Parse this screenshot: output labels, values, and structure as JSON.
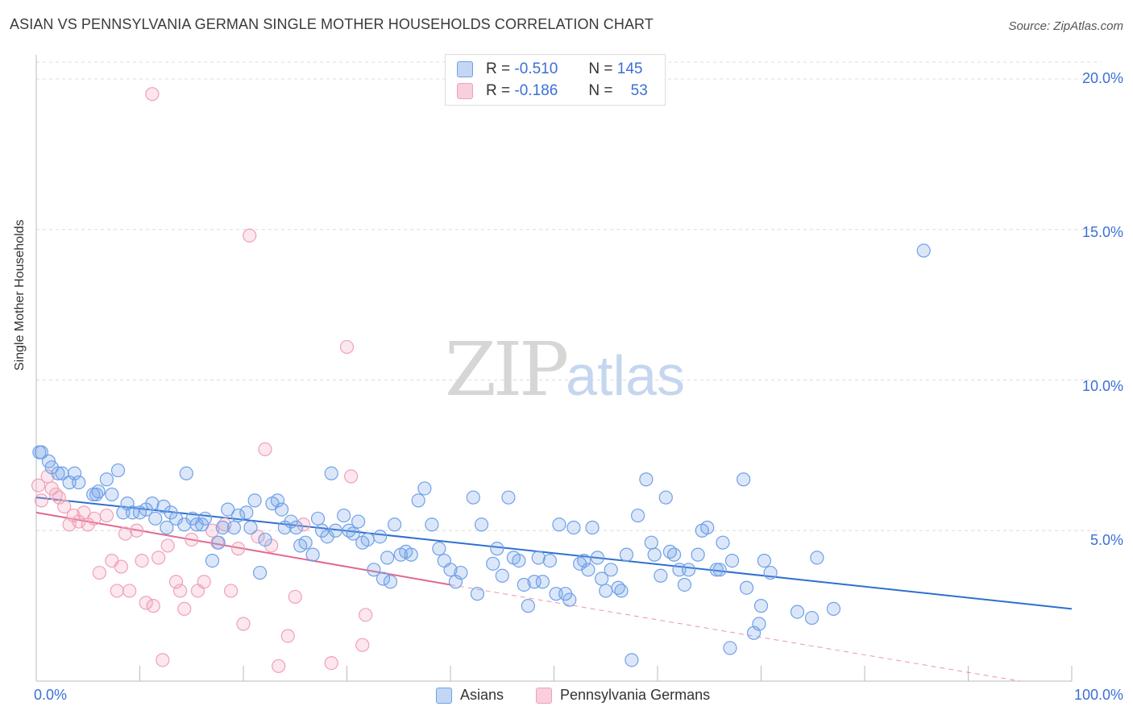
{
  "header": {
    "title": "ASIAN VS PENNSYLVANIA GERMAN SINGLE MOTHER HOUSEHOLDS CORRELATION CHART",
    "source": "Source: ZipAtlas.com"
  },
  "watermark": {
    "zip": "ZIP",
    "atlas": "atlas"
  },
  "legend": {
    "asian": {
      "r_label": "R =",
      "r_value": "-0.510",
      "n_label": "N =",
      "n_value": "145"
    },
    "penn": {
      "r_label": "R =",
      "r_value": "-0.186",
      "n_label": "N =",
      "n_value": "53"
    }
  },
  "bottom_legend": {
    "asian": "Asians",
    "penn": "Pennsylvania Germans"
  },
  "axes": {
    "ylabel": "Single Mother Households",
    "x_min_label": "0.0%",
    "x_max_label": "100.0%",
    "y_ticks": [
      "20.0%",
      "15.0%",
      "10.0%",
      "5.0%"
    ]
  },
  "colors": {
    "asian": "#6fa0e8",
    "asian_line": "#2f6fd0",
    "penn": "#f0a0b8",
    "penn_line": "#e36891",
    "tick_text": "#3b6fd6"
  },
  "chart_data": {
    "type": "scatter",
    "title": "ASIAN VS PENNSYLVANIA GERMAN SINGLE MOTHER HOUSEHOLDS CORRELATION CHART",
    "xlabel": "",
    "ylabel": "Single Mother Households",
    "xlim": [
      0,
      100
    ],
    "ylim": [
      0,
      20.7
    ],
    "grid": true,
    "series": [
      {
        "name": "Asians",
        "trend": {
          "x": [
            0,
            100
          ],
          "y": [
            6.1,
            2.4
          ]
        },
        "points": [
          [
            0.3,
            7.6
          ],
          [
            0.5,
            7.6
          ],
          [
            1.2,
            7.3
          ],
          [
            1.5,
            7.1
          ],
          [
            2.1,
            6.9
          ],
          [
            2.5,
            6.9
          ],
          [
            3.2,
            6.6
          ],
          [
            3.7,
            6.9
          ],
          [
            4.1,
            6.6
          ],
          [
            5.5,
            6.2
          ],
          [
            5.8,
            6.2
          ],
          [
            6.0,
            6.3
          ],
          [
            6.8,
            6.7
          ],
          [
            7.3,
            6.2
          ],
          [
            7.9,
            7.0
          ],
          [
            8.4,
            5.6
          ],
          [
            8.8,
            5.9
          ],
          [
            9.3,
            5.6
          ],
          [
            10.0,
            5.6
          ],
          [
            10.6,
            5.7
          ],
          [
            11.2,
            5.9
          ],
          [
            11.5,
            5.4
          ],
          [
            12.3,
            5.8
          ],
          [
            12.6,
            5.1
          ],
          [
            13.0,
            5.6
          ],
          [
            13.5,
            5.4
          ],
          [
            14.3,
            5.2
          ],
          [
            14.5,
            6.9
          ],
          [
            15.1,
            5.4
          ],
          [
            15.5,
            5.2
          ],
          [
            16.0,
            5.2
          ],
          [
            16.3,
            5.4
          ],
          [
            17.0,
            4.0
          ],
          [
            17.6,
            4.6
          ],
          [
            18.0,
            5.1
          ],
          [
            18.5,
            5.7
          ],
          [
            19.1,
            5.1
          ],
          [
            19.5,
            5.5
          ],
          [
            20.3,
            5.6
          ],
          [
            20.7,
            5.1
          ],
          [
            21.1,
            6.0
          ],
          [
            21.6,
            3.6
          ],
          [
            22.1,
            4.7
          ],
          [
            22.8,
            5.9
          ],
          [
            23.3,
            6.0
          ],
          [
            23.7,
            5.7
          ],
          [
            24.0,
            5.1
          ],
          [
            24.6,
            5.3
          ],
          [
            25.1,
            5.1
          ],
          [
            25.5,
            4.5
          ],
          [
            26.0,
            4.6
          ],
          [
            26.7,
            4.2
          ],
          [
            27.2,
            5.4
          ],
          [
            27.6,
            5.0
          ],
          [
            28.1,
            4.8
          ],
          [
            28.5,
            6.9
          ],
          [
            28.9,
            5.0
          ],
          [
            29.7,
            5.5
          ],
          [
            30.2,
            5.0
          ],
          [
            30.6,
            4.9
          ],
          [
            31.1,
            5.3
          ],
          [
            31.5,
            4.6
          ],
          [
            32.0,
            4.7
          ],
          [
            32.6,
            3.7
          ],
          [
            33.2,
            4.8
          ],
          [
            33.5,
            3.4
          ],
          [
            33.9,
            4.1
          ],
          [
            34.2,
            3.3
          ],
          [
            34.6,
            5.2
          ],
          [
            35.2,
            4.2
          ],
          [
            35.7,
            4.3
          ],
          [
            36.2,
            4.2
          ],
          [
            36.9,
            6.0
          ],
          [
            37.5,
            6.4
          ],
          [
            38.2,
            5.2
          ],
          [
            38.9,
            4.4
          ],
          [
            39.4,
            4.0
          ],
          [
            40.0,
            3.7
          ],
          [
            40.5,
            3.3
          ],
          [
            41.0,
            3.6
          ],
          [
            42.2,
            6.1
          ],
          [
            42.6,
            2.9
          ],
          [
            43.0,
            5.2
          ],
          [
            44.1,
            3.9
          ],
          [
            44.5,
            4.4
          ],
          [
            45.0,
            3.5
          ],
          [
            45.6,
            6.1
          ],
          [
            46.1,
            4.1
          ],
          [
            46.6,
            4.0
          ],
          [
            47.1,
            3.2
          ],
          [
            47.5,
            2.5
          ],
          [
            48.1,
            3.3
          ],
          [
            48.5,
            4.1
          ],
          [
            48.9,
            3.3
          ],
          [
            49.6,
            4.0
          ],
          [
            50.2,
            2.9
          ],
          [
            50.5,
            5.2
          ],
          [
            51.1,
            2.9
          ],
          [
            51.5,
            2.7
          ],
          [
            51.9,
            5.1
          ],
          [
            52.5,
            3.9
          ],
          [
            52.9,
            4.0
          ],
          [
            53.3,
            3.7
          ],
          [
            53.7,
            5.1
          ],
          [
            54.2,
            4.1
          ],
          [
            54.6,
            3.4
          ],
          [
            55.0,
            3.0
          ],
          [
            55.5,
            3.7
          ],
          [
            56.2,
            3.1
          ],
          [
            56.5,
            3.0
          ],
          [
            57.0,
            4.2
          ],
          [
            57.5,
            0.7
          ],
          [
            58.1,
            5.5
          ],
          [
            58.9,
            6.7
          ],
          [
            59.4,
            4.6
          ],
          [
            59.7,
            4.2
          ],
          [
            60.3,
            3.5
          ],
          [
            60.8,
            6.1
          ],
          [
            61.2,
            4.3
          ],
          [
            61.6,
            4.2
          ],
          [
            62.1,
            3.7
          ],
          [
            62.6,
            3.2
          ],
          [
            63.0,
            3.7
          ],
          [
            63.9,
            4.2
          ],
          [
            64.3,
            5.0
          ],
          [
            64.8,
            5.1
          ],
          [
            65.7,
            3.7
          ],
          [
            66.0,
            3.7
          ],
          [
            66.3,
            4.6
          ],
          [
            67.0,
            1.1
          ],
          [
            67.2,
            4.0
          ],
          [
            68.3,
            6.7
          ],
          [
            68.6,
            3.1
          ],
          [
            69.3,
            1.6
          ],
          [
            69.8,
            1.9
          ],
          [
            70.0,
            2.5
          ],
          [
            70.3,
            4.0
          ],
          [
            70.9,
            3.6
          ],
          [
            73.5,
            2.3
          ],
          [
            74.9,
            2.1
          ],
          [
            75.4,
            4.1
          ],
          [
            77.0,
            2.4
          ],
          [
            85.7,
            14.3
          ]
        ]
      },
      {
        "name": "Pennsylvania Germans",
        "trend": {
          "x": [
            0,
            40
          ],
          "y": [
            5.6,
            3.2
          ]
        },
        "trend_ext": {
          "x": [
            40,
            95
          ],
          "y": [
            3.2,
            0.0
          ]
        },
        "points": [
          [
            0.2,
            6.5
          ],
          [
            0.5,
            6.0
          ],
          [
            1.1,
            6.8
          ],
          [
            1.5,
            6.4
          ],
          [
            1.9,
            6.2
          ],
          [
            2.2,
            6.1
          ],
          [
            2.7,
            5.8
          ],
          [
            3.2,
            5.2
          ],
          [
            3.6,
            5.5
          ],
          [
            4.1,
            5.3
          ],
          [
            4.6,
            5.6
          ],
          [
            5.0,
            5.2
          ],
          [
            5.6,
            5.4
          ],
          [
            6.1,
            3.6
          ],
          [
            6.8,
            5.5
          ],
          [
            7.3,
            4.0
          ],
          [
            7.8,
            3.0
          ],
          [
            8.2,
            3.8
          ],
          [
            8.6,
            4.9
          ],
          [
            9.0,
            3.0
          ],
          [
            9.7,
            5.0
          ],
          [
            10.2,
            4.0
          ],
          [
            10.6,
            2.6
          ],
          [
            11.3,
            2.5
          ],
          [
            11.8,
            4.1
          ],
          [
            12.2,
            0.7
          ],
          [
            11.2,
            19.5
          ],
          [
            12.7,
            4.5
          ],
          [
            13.5,
            3.3
          ],
          [
            13.9,
            3.0
          ],
          [
            14.3,
            2.4
          ],
          [
            15.0,
            4.7
          ],
          [
            15.6,
            3.0
          ],
          [
            16.2,
            3.3
          ],
          [
            17.0,
            5.0
          ],
          [
            17.5,
            4.6
          ],
          [
            18.2,
            5.2
          ],
          [
            18.8,
            3.0
          ],
          [
            19.5,
            4.4
          ],
          [
            20.0,
            1.9
          ],
          [
            20.6,
            14.8
          ],
          [
            21.4,
            4.8
          ],
          [
            22.1,
            7.7
          ],
          [
            22.7,
            4.5
          ],
          [
            23.4,
            0.5
          ],
          [
            24.3,
            1.5
          ],
          [
            25.0,
            2.8
          ],
          [
            25.8,
            5.2
          ],
          [
            28.5,
            0.6
          ],
          [
            30.0,
            11.1
          ],
          [
            30.4,
            6.8
          ],
          [
            31.5,
            1.2
          ],
          [
            31.8,
            2.2
          ]
        ]
      }
    ]
  }
}
